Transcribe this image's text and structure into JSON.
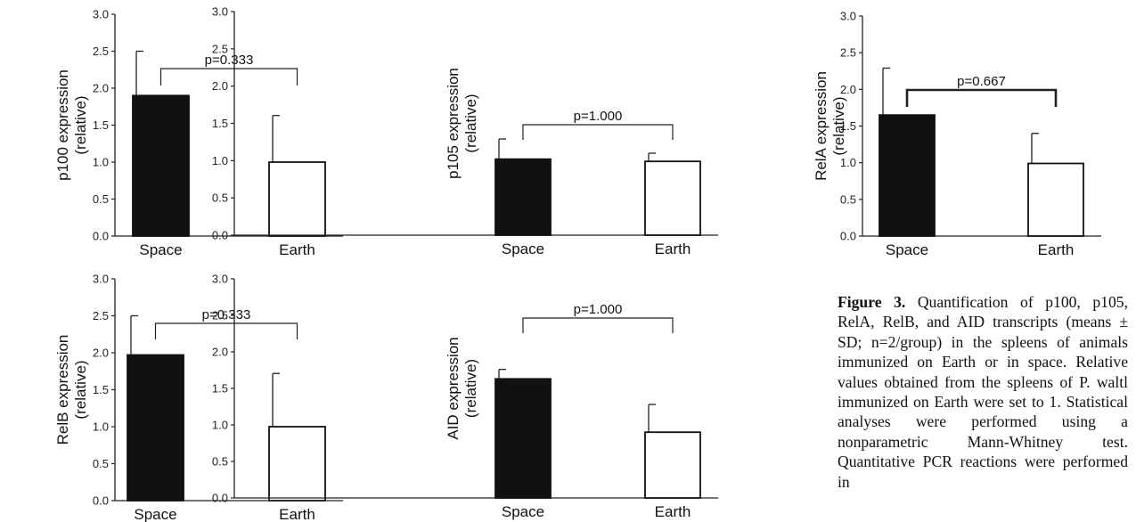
{
  "chart_data": [
    {
      "type": "bar",
      "ylabel": [
        "p100 expression",
        "(relative)"
      ],
      "categories": [
        "Space",
        "Earth"
      ],
      "values": [
        1.9,
        1.0
      ],
      "errors": [
        0.6,
        0.63
      ],
      "bar_colors": [
        "#111111",
        "#ffffff"
      ],
      "annotation": "p=0.333",
      "ylim": [
        0,
        3.0
      ],
      "yticks": [
        "0.0",
        "0.5",
        "1.0",
        "1.5",
        "2.0",
        "2.5",
        "3.0"
      ],
      "bracket_style": "thin"
    },
    {
      "type": "bar",
      "ylabel": [
        "p105 expression",
        "(relative)"
      ],
      "categories": [
        "Space",
        "Earth"
      ],
      "values": [
        1.02,
        0.99
      ],
      "errors": [
        0.27,
        0.11
      ],
      "bar_colors": [
        "#111111",
        "#ffffff"
      ],
      "annotation": "p=1.000",
      "ylim": [
        0,
        3.0
      ],
      "yticks": [
        "0.0",
        "0.5",
        "1.0",
        "1.5",
        "2.0",
        "2.5",
        "3.0"
      ],
      "bracket_style": "thin"
    },
    {
      "type": "bar",
      "ylabel": [
        "RelA expression",
        "(relative)"
      ],
      "categories": [
        "Space",
        "Earth"
      ],
      "values": [
        1.65,
        0.99
      ],
      "errors": [
        0.64,
        0.41
      ],
      "bar_colors": [
        "#111111",
        "#ffffff"
      ],
      "annotation": "p=0.667",
      "ylim": [
        0,
        3.0
      ],
      "yticks": [
        "0.0",
        "0.5",
        "1.0",
        "1.5",
        "2.0",
        "2.5",
        "3.0"
      ],
      "bracket_style": "bold"
    },
    {
      "type": "bar",
      "ylabel": [
        "RelB expression",
        "(relative)"
      ],
      "categories": [
        "Space",
        "Earth"
      ],
      "values": [
        1.97,
        1.0
      ],
      "errors": [
        0.53,
        0.72
      ],
      "bar_colors": [
        "#111111",
        "#ffffff"
      ],
      "annotation": "p=0.333",
      "ylim": [
        0,
        3.0
      ],
      "yticks": [
        "0.0",
        "0.5",
        "1.0",
        "1.5",
        "2.0",
        "2.5",
        "3.0"
      ],
      "bracket_style": "thin"
    },
    {
      "type": "bar",
      "ylabel": [
        "AID expression",
        "(relative)"
      ],
      "categories": [
        "Space",
        "Earth"
      ],
      "values": [
        1.63,
        0.9
      ],
      "errors": [
        0.13,
        0.38
      ],
      "bar_colors": [
        "#111111",
        "#ffffff"
      ],
      "annotation": "p=1.000",
      "ylim": [
        0,
        3.0
      ],
      "yticks": [
        "0.0",
        "0.5",
        "1.0",
        "1.5",
        "2.0",
        "2.5",
        "3.0"
      ],
      "bracket_style": "thin"
    }
  ],
  "caption": {
    "label": "Figure 3.",
    "text": "Quantification of p100, p105, RelA, RelB, and AID transcripts (means ± SD; n=2/group) in the spleens of animals immunized on Earth or in space. Relative values obtained from the spleens of P. waltl immunized on Earth were set to 1. Statistical analyses were performed using a nonparametric Mann-Whitney test. Quantitative PCR reactions were performed in"
  }
}
